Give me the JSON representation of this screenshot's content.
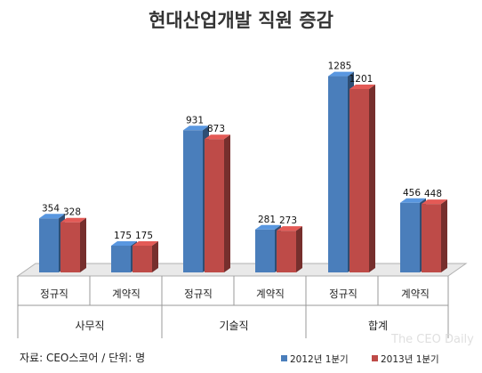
{
  "chart_data": {
    "type": "bar",
    "title": "현대산업개발 직원 증감",
    "groups": [
      {
        "name": "사무직",
        "categories": [
          "정규직",
          "계약직"
        ]
      },
      {
        "name": "기술직",
        "categories": [
          "정규직",
          "계약직"
        ]
      },
      {
        "name": "합계",
        "categories": [
          "정규직",
          "계약직"
        ]
      }
    ],
    "categories": [
      "정규직",
      "계약직",
      "정규직",
      "계약직",
      "정규직",
      "계약직"
    ],
    "series": [
      {
        "name": "2012년 1분기",
        "values": [
          354,
          175,
          931,
          281,
          1285,
          456
        ],
        "color": "#4a7ebb"
      },
      {
        "name": "2013년 1분기",
        "values": [
          328,
          175,
          873,
          273,
          1201,
          448
        ],
        "color": "#be4b48"
      }
    ],
    "ylim": [
      0,
      1300
    ],
    "grid": false,
    "legend_position": "bottom-right"
  },
  "source_note": "자료: CEO스코어 / 단위: 명",
  "watermark": "The CEO Daily"
}
